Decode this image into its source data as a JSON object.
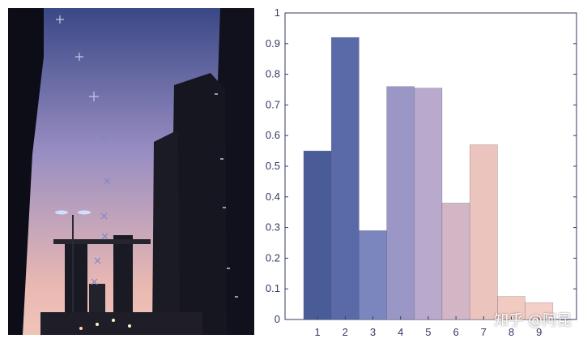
{
  "photo": {
    "description_icon": "city-sunset-photo",
    "sky_top": "#3a4886",
    "sky_mid": "#9a8fc3",
    "sky_bottom": "#e9b8b2"
  },
  "chart_data": {
    "type": "bar",
    "categories": [
      "1",
      "2",
      "3",
      "4",
      "5",
      "6",
      "7",
      "8",
      "9"
    ],
    "values": [
      0.55,
      0.92,
      0.29,
      0.76,
      0.755,
      0.38,
      0.57,
      0.075,
      0.055
    ],
    "colors": [
      "#4a5c98",
      "#5a6aa8",
      "#7b86bf",
      "#9a96c6",
      "#b9a9cc",
      "#d2b6c6",
      "#eac4bd",
      "#f1cbc2",
      "#f3cfc7"
    ],
    "ylim": [
      0,
      1
    ],
    "yticks": [
      0,
      0.1,
      0.2,
      0.3,
      0.4,
      0.5,
      0.6,
      0.7,
      0.8,
      0.9,
      1
    ],
    "ytick_labels": [
      "0",
      "0.1",
      "0.2",
      "0.3",
      "0.4",
      "0.5",
      "0.6",
      "0.7",
      "0.8",
      "0.9",
      "1"
    ],
    "title": "",
    "xlabel": "",
    "ylabel": "",
    "grid": false
  },
  "watermark": "知乎 @阿昆"
}
